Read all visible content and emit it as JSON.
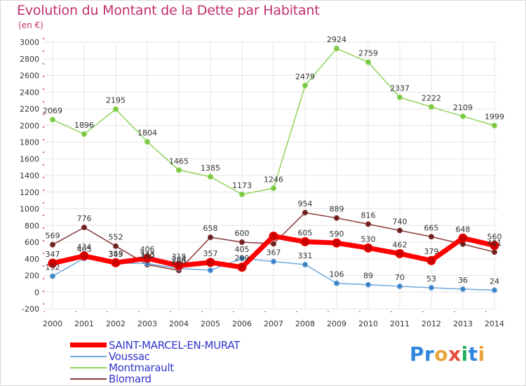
{
  "header": {
    "title": "Evolution du Montant de la Dette par Habitant",
    "subtitle": "(en €)"
  },
  "colors": {
    "title": "#c0306a",
    "axis": "#333333",
    "grid": "#e6e6e6",
    "legend_text": "#3333cc"
  },
  "logo": {
    "text": "Proxiti",
    "letters": [
      {
        "ch": "P",
        "color": "#2e86de"
      },
      {
        "ch": "r",
        "color": "#2e86de"
      },
      {
        "ch": "o",
        "color": "#e8a33a"
      },
      {
        "ch": "x",
        "color": "#e74c3c"
      },
      {
        "ch": "i",
        "color": "#27ae60"
      },
      {
        "ch": "t",
        "color": "#2e86de"
      },
      {
        "ch": "i",
        "color": "#e8a33a"
      }
    ]
  },
  "chart_data": {
    "type": "line",
    "title": "Evolution du Montant de la Dette par Habitant",
    "ylabel": "(en €)",
    "x": [
      2000,
      2001,
      2002,
      2003,
      2004,
      2005,
      2006,
      2007,
      2008,
      2009,
      2010,
      2011,
      2012,
      2013,
      2014
    ],
    "ylim": [
      -200,
      3000
    ],
    "yticks": [
      -200,
      0,
      200,
      400,
      600,
      800,
      1000,
      1200,
      1400,
      1600,
      1800,
      2000,
      2200,
      2400,
      2600,
      2800,
      3000
    ],
    "grid": true,
    "legend_position": "bottom-left",
    "series": [
      {
        "name": "Montmarault",
        "color": "#8fd45a",
        "marker": "#7ac943",
        "linewidth": 1.5,
        "markersize": 3.5,
        "values": [
          2069,
          1896,
          2195,
          1804,
          1465,
          1385,
          1173,
          1246,
          2479,
          2924,
          2759,
          2337,
          2222,
          2109,
          1999
        ],
        "labels": [
          "2069",
          "1896",
          "2195",
          "1804",
          "1465",
          "1385",
          "1173",
          "1246",
          "2479",
          "2924",
          "2759",
          "2337",
          "2222",
          "2109",
          "1999"
        ]
      },
      {
        "name": "Blomard",
        "color": "#8b3a3a",
        "marker": "#6b2020",
        "linewidth": 1.5,
        "markersize": 3.5,
        "values": [
          569,
          776,
          552,
          330,
          260,
          658,
          600,
          580,
          954,
          889,
          816,
          740,
          665,
          576,
          481
        ],
        "labels": [
          "569",
          "776",
          "552",
          "330",
          "260",
          "658",
          "600",
          "",
          "954",
          "889",
          "816",
          "740",
          "665",
          "",
          "481"
        ]
      },
      {
        "name": "Voussac",
        "color": "#6ea8dc",
        "marker": "#3b82c4",
        "linewidth": 1.5,
        "markersize": 3.5,
        "values": [
          192,
          405,
          349,
          343,
          284,
          262,
          405,
          367,
          331,
          106,
          89,
          70,
          53,
          36,
          24
        ],
        "labels": [
          "192",
          "405",
          "349",
          "343",
          "284",
          "",
          "405",
          "367",
          "331",
          "106",
          "89",
          "70",
          "53",
          "36",
          "24"
        ]
      },
      {
        "name": "SAINT-MARCEL-EN-MURAT",
        "color": "#ff0000",
        "marker": "#cc0000",
        "linewidth": 7,
        "markersize": 6,
        "values": [
          347,
          434,
          353,
          406,
          318,
          357,
          299,
          672,
          605,
          590,
          530,
          462,
          379,
          648,
          560
        ],
        "labels": [
          "347",
          "434",
          "353",
          "406",
          "318",
          "357",
          "299",
          "",
          "605",
          "590",
          "530",
          "462",
          "379",
          "648",
          "560"
        ]
      }
    ]
  }
}
